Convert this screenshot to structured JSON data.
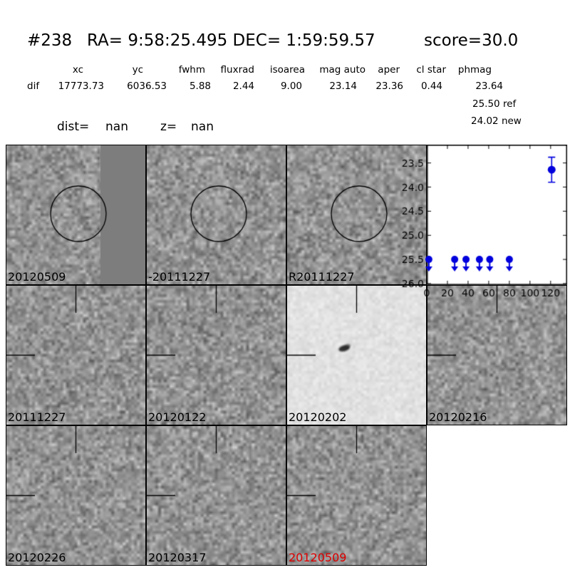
{
  "header": {
    "object_id": "#238",
    "coords": "RA= 9:58:25.495 DEC= 1:59:59.57",
    "score": "score=30.0"
  },
  "photometry": {
    "columns": [
      "xc",
      "yc",
      "fwhm",
      "fluxrad",
      "isoarea",
      "mag auto",
      "aper",
      "cl star",
      "phmag"
    ],
    "row_label": "dif",
    "values": [
      "17773.73",
      "6036.53",
      "5.88",
      "2.44",
      "9.00",
      "23.14",
      "23.36",
      "0.44",
      "23.64"
    ],
    "ref_line": "25.50 ref",
    "new_line": "24.02 new"
  },
  "info": {
    "dist_label": "dist=",
    "dist_value": "nan",
    "z_label": "z=",
    "z_value": "nan"
  },
  "panels": [
    {
      "label": "20120509",
      "label_color": "#000000",
      "row": 0,
      "col": 0,
      "marker": "circle",
      "variant": "masked_right"
    },
    {
      "label": "-20111227",
      "label_color": "#000000",
      "row": 0,
      "col": 1,
      "marker": "circle",
      "variant": "normal"
    },
    {
      "label": "R20111227",
      "label_color": "#000000",
      "row": 0,
      "col": 2,
      "marker": "circle",
      "variant": "normal"
    },
    {
      "label": "20111227",
      "label_color": "#000000",
      "row": 1,
      "col": 0,
      "marker": "crosshair",
      "variant": "normal"
    },
    {
      "label": "20120122",
      "label_color": "#000000",
      "row": 1,
      "col": 1,
      "marker": "crosshair",
      "variant": "normal"
    },
    {
      "label": "20120202",
      "label_color": "#000000",
      "row": 1,
      "col": 2,
      "marker": "crosshair",
      "variant": "light_with_spot"
    },
    {
      "label": "20120216",
      "label_color": "#000000",
      "row": 1,
      "col": 3,
      "marker": "crosshair",
      "variant": "normal"
    },
    {
      "label": "20120226",
      "label_color": "#000000",
      "row": 2,
      "col": 0,
      "marker": "crosshair",
      "variant": "normal"
    },
    {
      "label": "20120317",
      "label_color": "#000000",
      "row": 2,
      "col": 1,
      "marker": "crosshair",
      "variant": "normal"
    },
    {
      "label": "20120509",
      "label_color": "#dd0000",
      "row": 2,
      "col": 2,
      "marker": "crosshair",
      "variant": "normal"
    }
  ],
  "chart_data": {
    "type": "scatter",
    "title": "",
    "xlabel": "",
    "ylabel": "",
    "xlim": [
      0,
      136
    ],
    "ylim": [
      26.03,
      23.12
    ],
    "y_axis_inverted_magnitudes": true,
    "x_ticks": [
      0,
      20,
      40,
      60,
      80,
      100,
      120
    ],
    "y_ticks": [
      23.5,
      24.0,
      24.5,
      25.0,
      25.5,
      26.0
    ],
    "marker_color": "#0000dd",
    "series": [
      {
        "name": "upper-limits",
        "marker": "circle-down-arrow",
        "x": [
          2,
          27,
          38,
          51,
          61,
          80
        ],
        "y": [
          25.5,
          25.5,
          25.5,
          25.5,
          25.5,
          25.5
        ]
      },
      {
        "name": "detection",
        "marker": "circle-errorbar",
        "x": [
          121
        ],
        "y": [
          23.64
        ],
        "yerr": [
          0.26
        ]
      }
    ]
  },
  "colors": {
    "highlight_label": "#dd0000",
    "mask_gray": "#7d7d7d",
    "marker_blue": "#0000dd"
  }
}
